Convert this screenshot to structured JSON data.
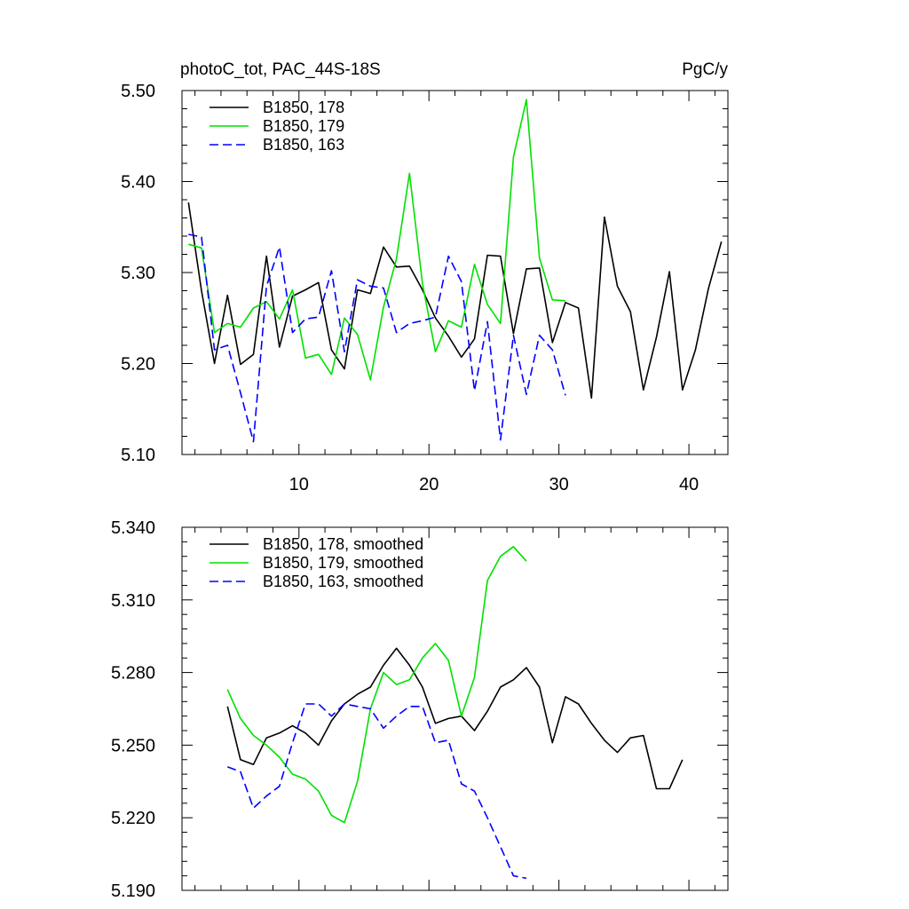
{
  "header": {
    "left": "photoC_tot, PAC_44S-18S",
    "right": "PgC/y"
  },
  "chart_data": [
    {
      "type": "line",
      "title": "photoC_tot, PAC_44S-18S",
      "units": "PgC/y",
      "xlabel": "",
      "ylabel": "",
      "xlim": [
        1,
        43
      ],
      "ylim": [
        5.1,
        5.5
      ],
      "xticks": [
        10,
        20,
        30,
        40
      ],
      "xtick_labels": [
        "10",
        "20",
        "30",
        "40"
      ],
      "yticks": [
        5.1,
        5.2,
        5.3,
        5.4,
        5.5
      ],
      "ytick_labels": [
        "5.10",
        "5.20",
        "5.30",
        "5.40",
        "5.50"
      ],
      "legend_position": "top-left",
      "grid": false,
      "series": [
        {
          "name": "B1850, 178",
          "color": "#000000",
          "dash": "solid",
          "x": [
            1.5,
            2.5,
            3.5,
            4.5,
            5.5,
            6.5,
            7.5,
            8.5,
            9.5,
            10.5,
            11.5,
            12.5,
            13.5,
            14.5,
            15.5,
            16.5,
            17.5,
            18.5,
            19.5,
            20.5,
            21.5,
            22.5,
            23.5,
            24.5,
            25.5,
            26.5,
            27.5,
            28.5,
            29.5,
            30.5,
            31.5,
            32.5,
            33.5,
            34.5,
            35.5,
            36.5,
            37.5,
            38.5,
            39.5,
            40.5,
            41.5,
            42.5
          ],
          "y": [
            5.377,
            5.28,
            5.2,
            5.275,
            5.199,
            5.21,
            5.318,
            5.218,
            5.274,
            5.281,
            5.289,
            5.215,
            5.194,
            5.281,
            5.277,
            5.328,
            5.306,
            5.307,
            5.281,
            5.25,
            5.23,
            5.207,
            5.227,
            5.319,
            5.318,
            5.233,
            5.304,
            5.305,
            5.223,
            5.267,
            5.261,
            5.162,
            5.361,
            5.285,
            5.257,
            5.171,
            5.229,
            5.301,
            5.171,
            5.215,
            5.282,
            5.334
          ]
        },
        {
          "name": "B1850, 179",
          "color": "#00e000",
          "dash": "solid",
          "x": [
            1.5,
            2.5,
            3.5,
            4.5,
            5.5,
            6.5,
            7.5,
            8.5,
            9.5,
            10.5,
            11.5,
            12.5,
            13.5,
            14.5,
            15.5,
            16.5,
            17.5,
            18.5,
            19.5,
            20.5,
            21.5,
            22.5,
            23.5,
            24.5,
            25.5,
            26.5,
            27.5,
            28.5,
            29.5,
            30.5
          ],
          "y": [
            5.331,
            5.327,
            5.234,
            5.244,
            5.24,
            5.261,
            5.268,
            5.249,
            5.281,
            5.206,
            5.21,
            5.188,
            5.25,
            5.232,
            5.182,
            5.262,
            5.315,
            5.409,
            5.288,
            5.213,
            5.247,
            5.24,
            5.309,
            5.265,
            5.244,
            5.427,
            5.49,
            5.316,
            5.27,
            5.269
          ]
        },
        {
          "name": "B1850, 163",
          "color": "#0000ff",
          "dash": "dashed",
          "x": [
            1.5,
            2.5,
            3.5,
            4.5,
            5.5,
            6.5,
            7.5,
            8.5,
            9.5,
            10.5,
            11.5,
            12.5,
            13.5,
            14.5,
            15.5,
            16.5,
            17.5,
            18.5,
            19.5,
            20.5,
            21.5,
            22.5,
            23.5,
            24.5,
            25.5,
            26.5,
            27.5,
            28.5,
            29.5,
            30.5
          ],
          "y": [
            5.342,
            5.339,
            5.215,
            5.22,
            5.168,
            5.114,
            5.285,
            5.328,
            5.234,
            5.249,
            5.251,
            5.302,
            5.213,
            5.292,
            5.285,
            5.283,
            5.234,
            5.244,
            5.247,
            5.251,
            5.318,
            5.29,
            5.17,
            5.246,
            5.116,
            5.231,
            5.166,
            5.231,
            5.215,
            5.165
          ]
        }
      ]
    },
    {
      "type": "line",
      "title": "",
      "xlabel": "",
      "ylabel": "",
      "xlim": [
        1,
        43
      ],
      "ylim": [
        5.19,
        5.34
      ],
      "xticks": [
        10,
        20,
        30,
        40
      ],
      "xtick_labels": [],
      "yticks": [
        5.19,
        5.22,
        5.25,
        5.28,
        5.31,
        5.34
      ],
      "ytick_labels": [
        "5.190",
        "5.220",
        "5.250",
        "5.280",
        "5.310",
        "5.340"
      ],
      "legend_position": "top-left",
      "grid": false,
      "series": [
        {
          "name": "B1850, 178, smoothed",
          "color": "#000000",
          "dash": "solid",
          "x": [
            4.5,
            5.5,
            6.5,
            7.5,
            8.5,
            9.5,
            10.5,
            11.5,
            12.5,
            13.5,
            14.5,
            15.5,
            16.5,
            17.5,
            18.5,
            19.5,
            20.5,
            21.5,
            22.5,
            23.5,
            24.5,
            25.5,
            26.5,
            27.5,
            28.5,
            29.5,
            30.5,
            31.5,
            32.5,
            33.5,
            34.5,
            35.5,
            36.5,
            37.5,
            38.5,
            39.5
          ],
          "y": [
            5.266,
            5.244,
            5.242,
            5.253,
            5.255,
            5.258,
            5.255,
            5.25,
            5.26,
            5.267,
            5.271,
            5.274,
            5.283,
            5.29,
            5.283,
            5.274,
            5.259,
            5.261,
            5.262,
            5.256,
            5.264,
            5.274,
            5.277,
            5.282,
            5.274,
            5.251,
            5.27,
            5.267,
            5.259,
            5.252,
            5.247,
            5.253,
            5.254,
            5.232,
            5.232,
            5.244
          ]
        },
        {
          "name": "B1850, 179, smoothed",
          "color": "#00e000",
          "dash": "solid",
          "x": [
            4.5,
            5.5,
            6.5,
            7.5,
            8.5,
            9.5,
            10.5,
            11.5,
            12.5,
            13.5,
            14.5,
            15.5,
            16.5,
            17.5,
            18.5,
            19.5,
            20.5,
            21.5,
            22.5,
            23.5,
            24.5,
            25.5,
            26.5,
            27.5
          ],
          "y": [
            5.273,
            5.261,
            5.254,
            5.25,
            5.245,
            5.238,
            5.236,
            5.231,
            5.221,
            5.218,
            5.235,
            5.265,
            5.28,
            5.275,
            5.277,
            5.286,
            5.292,
            5.285,
            5.262,
            5.278,
            5.318,
            5.328,
            5.332,
            5.326
          ]
        },
        {
          "name": "B1850, 163, smoothed",
          "color": "#0000ff",
          "dash": "dashed",
          "x": [
            4.5,
            5.5,
            6.5,
            7.5,
            8.5,
            9.5,
            10.5,
            11.5,
            12.5,
            13.5,
            14.5,
            15.5,
            16.5,
            17.5,
            18.5,
            19.5,
            20.5,
            21.5,
            22.5,
            23.5,
            24.5,
            25.5,
            26.5,
            27.5
          ],
          "y": [
            5.241,
            5.239,
            5.224,
            5.229,
            5.233,
            5.251,
            5.267,
            5.267,
            5.262,
            5.267,
            5.266,
            5.265,
            5.257,
            5.262,
            5.266,
            5.266,
            5.251,
            5.252,
            5.234,
            5.231,
            5.22,
            5.208,
            5.196,
            5.195
          ]
        }
      ]
    }
  ]
}
